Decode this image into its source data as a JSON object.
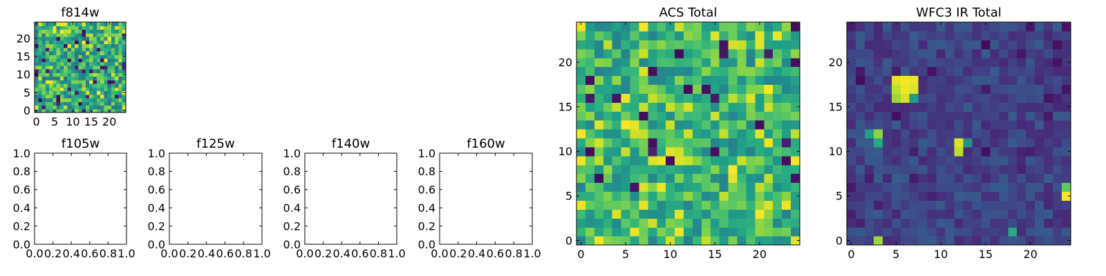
{
  "figure": {
    "background": "#ffffff"
  },
  "colormap": "viridis",
  "chart_data": [
    {
      "type": "heatmap",
      "title": "f814w",
      "xlabel": "",
      "ylabel": "",
      "xlim": [
        -0.5,
        24.5
      ],
      "ylim": [
        -0.5,
        24.5
      ],
      "xticks": [
        0,
        5,
        10,
        15,
        20
      ],
      "yticks": [
        0,
        5,
        10,
        15,
        20
      ],
      "grid": false,
      "seed": 814,
      "baseline": 0.62,
      "spread": 0.24,
      "dark_fraction": 0.05,
      "bright_fraction": 0.08,
      "note": "25x25 pixel cutout, mid-to-high values (green/yellow viridis) with scattered dark pixels"
    },
    {
      "type": "heatmap",
      "title": "f105w",
      "xlim": [
        0.0,
        1.0
      ],
      "ylim": [
        0.0,
        1.0
      ],
      "xticks": [
        "0.0",
        "0.2",
        "0.4",
        "0.6",
        "0.8",
        "1.0"
      ],
      "yticks": [
        "0.0",
        "0.2",
        "0.4",
        "0.6",
        "0.8",
        "1.0"
      ],
      "grid": false,
      "empty": true
    },
    {
      "type": "heatmap",
      "title": "f125w",
      "xlim": [
        0.0,
        1.0
      ],
      "ylim": [
        0.0,
        1.0
      ],
      "xticks": [
        "0.0",
        "0.2",
        "0.4",
        "0.6",
        "0.8",
        "1.0"
      ],
      "yticks": [
        "0.0",
        "0.2",
        "0.4",
        "0.6",
        "0.8",
        "1.0"
      ],
      "grid": false,
      "empty": true
    },
    {
      "type": "heatmap",
      "title": "f140w",
      "xlim": [
        0.0,
        1.0
      ],
      "ylim": [
        0.0,
        1.0
      ],
      "xticks": [
        "0.0",
        "0.2",
        "0.4",
        "0.6",
        "0.8",
        "1.0"
      ],
      "yticks": [
        "0.0",
        "0.2",
        "0.4",
        "0.6",
        "0.8",
        "1.0"
      ],
      "grid": false,
      "empty": true
    },
    {
      "type": "heatmap",
      "title": "f160w",
      "xlim": [
        0.0,
        1.0
      ],
      "ylim": [
        0.0,
        1.0
      ],
      "xticks": [
        "0.0",
        "0.2",
        "0.4",
        "0.6",
        "0.8",
        "1.0"
      ],
      "yticks": [
        "0.0",
        "0.2",
        "0.4",
        "0.6",
        "0.8",
        "1.0"
      ],
      "grid": false,
      "empty": true
    },
    {
      "type": "heatmap",
      "title": "ACS Total",
      "xlim": [
        -0.5,
        24.5
      ],
      "ylim": [
        -0.5,
        24.5
      ],
      "xticks": [
        0,
        5,
        10,
        15,
        20
      ],
      "yticks": [
        0,
        5,
        10,
        15,
        20
      ],
      "grid": false,
      "seed": 2024,
      "baseline": 0.64,
      "spread": 0.2,
      "dark_fraction": 0.04,
      "bright_fraction": 0.1,
      "note": "25x25 summed ACS image, mostly green/yellow with a few dark pixels"
    },
    {
      "type": "heatmap",
      "title": "WFC3 IR Total",
      "xlim": [
        -0.5,
        24.5
      ],
      "ylim": [
        -0.5,
        24.5
      ],
      "xticks": [
        0,
        5,
        10,
        15,
        20
      ],
      "yticks": [
        0,
        5,
        10,
        15,
        20
      ],
      "grid": false,
      "seed": 3331,
      "baseline": 0.2,
      "spread": 0.09,
      "dark_fraction": 0.05,
      "bright_fraction": 0.0,
      "hotspots": [
        {
          "x": 5,
          "y": 18,
          "v": 0.96
        },
        {
          "x": 6,
          "y": 18,
          "v": 0.99
        },
        {
          "x": 7,
          "y": 18,
          "v": 0.97
        },
        {
          "x": 5,
          "y": 17,
          "v": 0.9
        },
        {
          "x": 6,
          "y": 17,
          "v": 0.98
        },
        {
          "x": 7,
          "y": 17,
          "v": 0.95
        },
        {
          "x": 5,
          "y": 16,
          "v": 0.85
        },
        {
          "x": 6,
          "y": 16,
          "v": 0.94
        },
        {
          "x": 7,
          "y": 16,
          "v": 0.55
        },
        {
          "x": 6,
          "y": 15,
          "v": 0.12
        },
        {
          "x": 2,
          "y": 12,
          "v": 0.55
        },
        {
          "x": 3,
          "y": 12,
          "v": 0.82
        },
        {
          "x": 3,
          "y": 11,
          "v": 0.6
        },
        {
          "x": 12,
          "y": 11,
          "v": 0.95
        },
        {
          "x": 12,
          "y": 10,
          "v": 0.9
        },
        {
          "x": 13,
          "y": 11,
          "v": 0.5
        },
        {
          "x": 24,
          "y": 6,
          "v": 0.75
        },
        {
          "x": 24,
          "y": 5,
          "v": 0.99
        },
        {
          "x": 18,
          "y": 1,
          "v": 0.6
        },
        {
          "x": 3,
          "y": 0,
          "v": 0.85
        }
      ],
      "note": "25x25 summed WFC3 IR image, low background (purple/blue) with several bright compact sources"
    }
  ]
}
